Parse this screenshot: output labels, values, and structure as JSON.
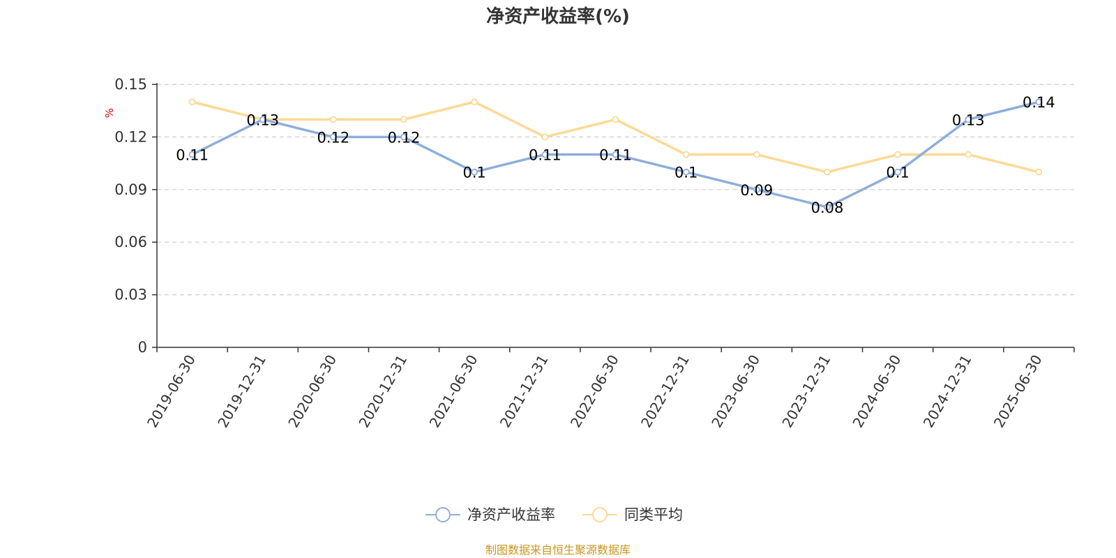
{
  "chart_data": {
    "type": "line",
    "title": "净资产收益率(%)",
    "ylabel": "%",
    "ylim": [
      0,
      0.15
    ],
    "yticks": [
      "0",
      "0.03",
      "0.06",
      "0.09",
      "0.12",
      "0.15"
    ],
    "ytick_values": [
      0,
      0.03,
      0.06,
      0.09,
      0.12,
      0.15
    ],
    "categories": [
      "2019-06-30",
      "2019-12-31",
      "2020-06-30",
      "2020-12-31",
      "2021-06-30",
      "2021-12-31",
      "2022-06-30",
      "2022-12-31",
      "2023-06-30",
      "2023-12-31",
      "2024-06-30",
      "2024-12-31",
      "2025-06-30"
    ],
    "series": [
      {
        "name": "净资产收益率",
        "color": "#8eaedb",
        "values": [
          0.11,
          0.13,
          0.12,
          0.12,
          0.1,
          0.11,
          0.11,
          0.1,
          0.09,
          0.08,
          0.1,
          0.13,
          0.14
        ],
        "labels": [
          "0.11",
          "0.13",
          "0.12",
          "0.12",
          "0.1",
          "0.11",
          "0.11",
          "0.1",
          "0.09",
          "0.08",
          "0.1",
          "0.13",
          "0.14"
        ]
      },
      {
        "name": "同类平均",
        "color": "#fcd995",
        "values": [
          0.14,
          0.13,
          0.13,
          0.13,
          0.14,
          0.12,
          0.13,
          0.11,
          0.11,
          0.1,
          0.11,
          0.11,
          0.1
        ]
      }
    ],
    "grid": true,
    "legend_position": "bottom"
  },
  "source_text": "制图数据来自恒生聚源数据库",
  "colors": {
    "axis": "#333333",
    "grid": "#cccccc",
    "unit": "#e00000",
    "source": "#c8961e"
  }
}
